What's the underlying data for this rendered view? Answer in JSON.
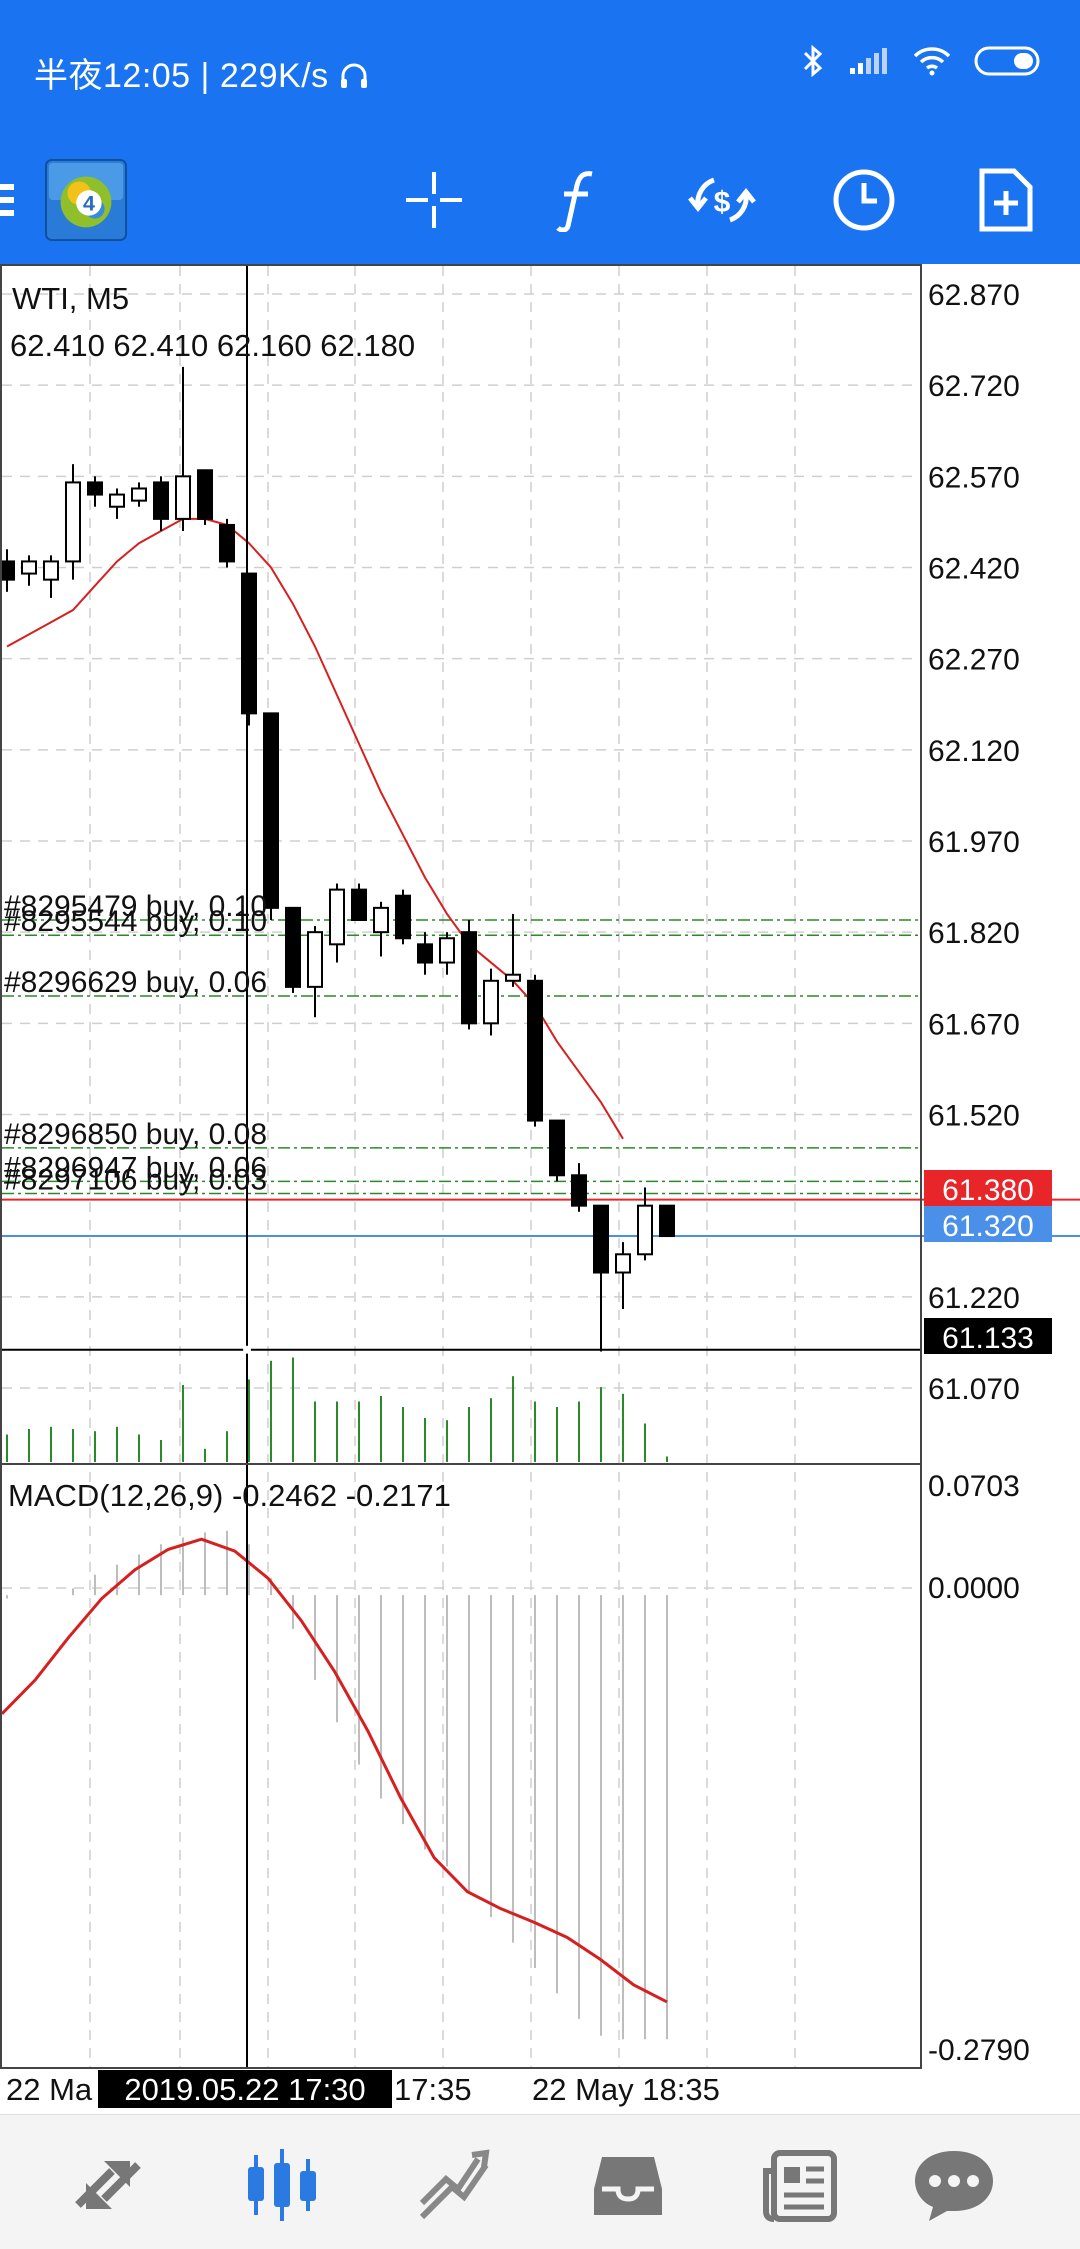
{
  "status_bar": {
    "time": "半夜12:05",
    "speed": "229K/s"
  },
  "colors": {
    "toolbar_bg": "#1a73f0",
    "bid_line": "#e8262a",
    "ask_line": "#4a90e8",
    "ma_line": "#d62020",
    "macd_signal": "#d62020",
    "volume": "#2a8a2a",
    "order_line": "#2a8a2a"
  },
  "toolbar": {
    "icons": [
      "menu-icon",
      "mt4-logo-icon",
      "crosshair-icon",
      "indicator-f-icon",
      "trade-dollar-icon",
      "timeframe-clock-icon",
      "new-order-icon"
    ]
  },
  "chart": {
    "symbol_timeframe": "WTI, M5",
    "ohlc": "62.410 62.410 62.160 62.180",
    "price_labels": [
      "62.870",
      "62.720",
      "62.570",
      "62.420",
      "62.270",
      "62.120",
      "61.970",
      "61.820",
      "61.670",
      "61.520",
      "61.220",
      "61.070"
    ],
    "bid_label": "61.380",
    "ask_label": "61.320",
    "crosshair_label": "61.133",
    "orders": [
      {
        "label": "#8295479 buy, 0.10",
        "price": 61.84
      },
      {
        "label": "#8295544 buy, 0.10",
        "price": 61.815
      },
      {
        "label": "#8296629 buy, 0.06",
        "price": 61.715
      },
      {
        "label": "#8296850 buy, 0.08",
        "price": 61.465
      },
      {
        "label": "#8296947 buy, 0.06",
        "price": 61.41
      },
      {
        "label": "#8297106 buy, 0.03",
        "price": 61.39
      }
    ],
    "macd_title": "MACD(12,26,9) -0.2462 -0.2171",
    "macd_labels": {
      "top": "0.0703",
      "zero": "0.0000",
      "bottom": "-0.2790"
    },
    "time_labels": {
      "left": "22 Ma",
      "crosshair": "2019.05.22 17:30",
      "after": "17:35",
      "right": "22 May 18:35"
    }
  },
  "chart_data": {
    "type": "candlestick",
    "price_axis": [
      61.07,
      62.87
    ],
    "candles": [
      {
        "o": 62.43,
        "h": 62.45,
        "l": 62.38,
        "c": 62.4
      },
      {
        "o": 62.41,
        "h": 62.44,
        "l": 62.39,
        "c": 62.43
      },
      {
        "o": 62.4,
        "h": 62.44,
        "l": 62.37,
        "c": 62.43
      },
      {
        "o": 62.43,
        "h": 62.59,
        "l": 62.4,
        "c": 62.56
      },
      {
        "o": 62.56,
        "h": 62.57,
        "l": 62.52,
        "c": 62.54
      },
      {
        "o": 62.52,
        "h": 62.55,
        "l": 62.5,
        "c": 62.54
      },
      {
        "o": 62.53,
        "h": 62.56,
        "l": 62.52,
        "c": 62.55
      },
      {
        "o": 62.56,
        "h": 62.57,
        "l": 62.48,
        "c": 62.5
      },
      {
        "o": 62.5,
        "h": 62.75,
        "l": 62.48,
        "c": 62.57
      },
      {
        "o": 62.58,
        "h": 62.58,
        "l": 62.49,
        "c": 62.5
      },
      {
        "o": 62.49,
        "h": 62.5,
        "l": 62.42,
        "c": 62.43
      },
      {
        "o": 62.41,
        "h": 62.41,
        "l": 62.16,
        "c": 62.18
      },
      {
        "o": 62.18,
        "h": 62.18,
        "l": 61.84,
        "c": 61.86
      },
      {
        "o": 61.86,
        "h": 61.86,
        "l": 61.72,
        "c": 61.73
      },
      {
        "o": 61.73,
        "h": 61.83,
        "l": 61.68,
        "c": 61.82
      },
      {
        "o": 61.8,
        "h": 61.9,
        "l": 61.77,
        "c": 61.89
      },
      {
        "o": 61.89,
        "h": 61.9,
        "l": 61.84,
        "c": 61.84
      },
      {
        "o": 61.82,
        "h": 61.87,
        "l": 61.78,
        "c": 61.86
      },
      {
        "o": 61.88,
        "h": 61.89,
        "l": 61.8,
        "c": 61.81
      },
      {
        "o": 61.8,
        "h": 61.82,
        "l": 61.75,
        "c": 61.77
      },
      {
        "o": 61.77,
        "h": 61.82,
        "l": 61.75,
        "c": 61.81
      },
      {
        "o": 61.82,
        "h": 61.84,
        "l": 61.66,
        "c": 61.67
      },
      {
        "o": 61.67,
        "h": 61.76,
        "l": 61.65,
        "c": 61.74
      },
      {
        "o": 61.74,
        "h": 61.85,
        "l": 61.73,
        "c": 61.75
      },
      {
        "o": 61.74,
        "h": 61.75,
        "l": 61.5,
        "c": 61.51
      },
      {
        "o": 61.51,
        "h": 61.51,
        "l": 61.41,
        "c": 61.42
      },
      {
        "o": 61.42,
        "h": 61.44,
        "l": 61.36,
        "c": 61.37
      },
      {
        "o": 61.37,
        "h": 61.37,
        "l": 61.13,
        "c": 61.26
      },
      {
        "o": 61.26,
        "h": 61.31,
        "l": 61.2,
        "c": 61.29
      },
      {
        "o": 61.29,
        "h": 61.4,
        "l": 61.28,
        "c": 61.37
      },
      {
        "o": 61.37,
        "h": 61.37,
        "l": 61.32,
        "c": 61.32
      }
    ],
    "ma": [
      62.29,
      62.31,
      62.33,
      62.35,
      62.39,
      62.43,
      62.46,
      62.48,
      62.5,
      62.5,
      62.49,
      62.46,
      62.42,
      62.36,
      62.29,
      62.21,
      62.13,
      62.05,
      61.98,
      61.91,
      61.85,
      61.8,
      61.77,
      61.74,
      61.7,
      61.64,
      61.59,
      61.54,
      61.48
    ],
    "volume": [
      0.25,
      0.3,
      0.32,
      0.3,
      0.28,
      0.32,
      0.25,
      0.2,
      0.7,
      0.12,
      0.28,
      0.75,
      0.92,
      0.95,
      0.55,
      0.55,
      0.55,
      0.6,
      0.5,
      0.4,
      0.38,
      0.5,
      0.58,
      0.78,
      0.55,
      0.5,
      0.55,
      0.68,
      0.62,
      0.35,
      0.05
    ],
    "macd_axis": [
      -0.279,
      0.0703
    ],
    "macd_hist": [
      -0.002,
      0.0,
      0.0,
      0.004,
      0.012,
      0.018,
      0.024,
      0.03,
      0.034,
      0.037,
      0.038,
      0.03,
      0.01,
      -0.02,
      -0.05,
      -0.075,
      -0.1,
      -0.12,
      -0.135,
      -0.15,
      -0.16,
      -0.175,
      -0.19,
      -0.205,
      -0.22,
      -0.235,
      -0.25,
      -0.26,
      -0.262,
      -0.262,
      -0.262
    ],
    "macd_signal": [
      -0.07,
      -0.05,
      -0.025,
      -0.002,
      0.015,
      0.027,
      0.033,
      0.026,
      0.01,
      -0.015,
      -0.045,
      -0.08,
      -0.12,
      -0.155,
      -0.175,
      -0.185,
      -0.193,
      -0.202,
      -0.215,
      -0.23,
      -0.24
    ]
  }
}
